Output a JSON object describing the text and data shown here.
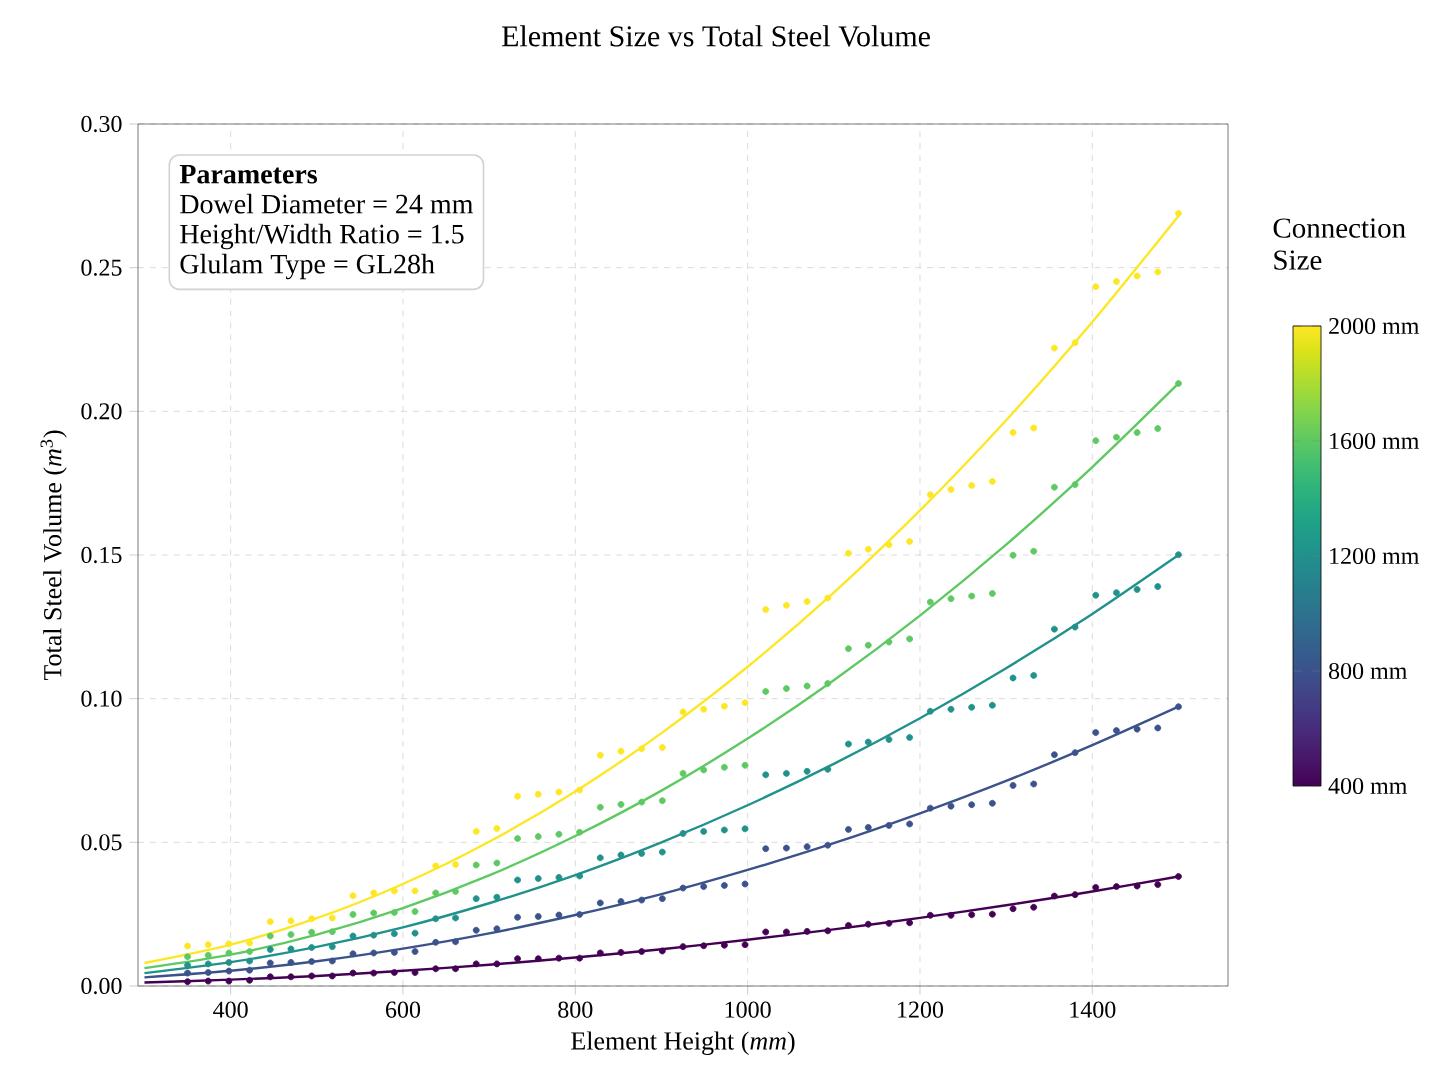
{
  "chart_data": {
    "type": "scatter",
    "title": "Element Size vs Total Steel Volume",
    "xlabel": "Element Height (*mm*)",
    "ylabel": "Total Steel Volume (*m*$^{3}$)",
    "clabel": "Connection Size",
    "clim": [
      400,
      2000
    ],
    "cticks": [
      {
        "value": 400,
        "label": "400 mm"
      },
      {
        "value": 800,
        "label": "800 mm"
      },
      {
        "value": 1200,
        "label": "1200 mm"
      },
      {
        "value": 1600,
        "label": "1600 mm"
      },
      {
        "value": 2000,
        "label": "2000 mm"
      }
    ],
    "xlim": [
      292.5,
      1557.5
    ],
    "ylim": [
      0,
      0.3
    ],
    "xticks": [
      400,
      600,
      800,
      1000,
      1200,
      1400
    ],
    "yticks": [
      {
        "value": 0,
        "label": "0.00"
      },
      {
        "value": 0.05,
        "label": "0.05"
      },
      {
        "value": 0.1,
        "label": "0.10"
      },
      {
        "value": 0.15,
        "label": "0.15"
      },
      {
        "value": 0.2,
        "label": "0.20"
      },
      {
        "value": 0.25,
        "label": "0.25"
      },
      {
        "value": 0.3,
        "label": "0.30"
      }
    ],
    "grid": true,
    "line_style": "solid",
    "annotations": [
      "Parameters",
      "Dowel Diameter = 24 mm",
      "Height/Width Ratio = 1.5",
      "Glulam Type = GL28h"
    ],
    "series": [
      {
        "type": "line",
        "color": "#440154",
        "x": [
          300,
          400,
          500,
          600,
          700,
          800,
          900,
          1000,
          1100,
          1200,
          1300,
          1400,
          1500
        ],
        "values": [
          0.0012,
          0.0022,
          0.0035,
          0.0053,
          0.0074,
          0.0099,
          0.0128,
          0.0161,
          0.0197,
          0.0237,
          0.0281,
          0.0329,
          0.0381
        ]
      },
      {
        "type": "line",
        "color": "#3b528b",
        "x": [
          300,
          400,
          500,
          600,
          700,
          800,
          900,
          1000,
          1100,
          1200,
          1300,
          1400,
          1500
        ],
        "values": [
          0.003,
          0.0053,
          0.0086,
          0.013,
          0.0183,
          0.0247,
          0.032,
          0.0404,
          0.0497,
          0.0601,
          0.0714,
          0.0838,
          0.0972
        ]
      },
      {
        "type": "line",
        "color": "#21918c",
        "x": [
          300,
          400,
          500,
          600,
          700,
          800,
          900,
          1000,
          1100,
          1200,
          1300,
          1400,
          1500
        ],
        "values": [
          0.0045,
          0.0083,
          0.0136,
          0.0204,
          0.0288,
          0.0386,
          0.05,
          0.0629,
          0.0773,
          0.0932,
          0.1106,
          0.1295,
          0.15
        ]
      },
      {
        "type": "line",
        "color": "#5ec962",
        "x": [
          300,
          400,
          500,
          600,
          700,
          800,
          900,
          1000,
          1100,
          1200,
          1300,
          1400,
          1500
        ],
        "values": [
          0.0062,
          0.0109,
          0.0179,
          0.0271,
          0.0385,
          0.0522,
          0.068,
          0.0861,
          0.1064,
          0.1289,
          0.1536,
          0.1806,
          0.2097
        ]
      },
      {
        "type": "line",
        "color": "#fde725",
        "x": [
          300,
          400,
          500,
          600,
          700,
          800,
          900,
          1000,
          1100,
          1200,
          1300,
          1400,
          1500
        ],
        "values": [
          0.008,
          0.0144,
          0.0236,
          0.0355,
          0.0502,
          0.0677,
          0.088,
          0.1111,
          0.1369,
          0.1655,
          0.1969,
          0.2311,
          0.268
        ]
      },
      {
        "marker": "circle",
        "color": "#440154",
        "x": [
          350,
          374,
          398,
          422,
          446,
          470,
          494,
          518,
          542,
          566,
          590,
          614,
          638,
          661,
          685,
          709,
          733,
          757,
          781,
          805,
          829,
          853,
          877,
          901,
          925,
          949,
          973,
          997,
          1021,
          1045,
          1069,
          1093,
          1117,
          1140,
          1164,
          1188,
          1212,
          1236,
          1260,
          1284,
          1308,
          1332,
          1356,
          1380,
          1404,
          1428,
          1452,
          1476,
          1500
        ],
        "values": [
          0.0015,
          0.0017,
          0.0017,
          0.002,
          0.0032,
          0.0032,
          0.0035,
          0.0035,
          0.0045,
          0.0045,
          0.0047,
          0.0047,
          0.006,
          0.006,
          0.0077,
          0.0077,
          0.0095,
          0.0095,
          0.0097,
          0.0097,
          0.0115,
          0.0117,
          0.012,
          0.0122,
          0.0137,
          0.014,
          0.0142,
          0.0144,
          0.0188,
          0.0188,
          0.019,
          0.0192,
          0.0211,
          0.0215,
          0.0218,
          0.022,
          0.0246,
          0.0246,
          0.0248,
          0.025,
          0.0269,
          0.0274,
          0.0313,
          0.0318,
          0.0343,
          0.0346,
          0.0348,
          0.0353,
          0.0381
        ]
      },
      {
        "marker": "circle",
        "color": "#3b528b",
        "x": [
          350,
          374,
          398,
          422,
          446,
          470,
          494,
          518,
          542,
          566,
          590,
          614,
          638,
          661,
          685,
          709,
          733,
          757,
          781,
          805,
          829,
          853,
          877,
          901,
          925,
          949,
          973,
          997,
          1021,
          1045,
          1069,
          1093,
          1117,
          1140,
          1164,
          1188,
          1212,
          1236,
          1260,
          1284,
          1308,
          1332,
          1356,
          1380,
          1404,
          1428,
          1452,
          1476,
          1500
        ],
        "values": [
          0.0045,
          0.0047,
          0.0052,
          0.0055,
          0.008,
          0.0082,
          0.0085,
          0.0087,
          0.0112,
          0.0115,
          0.0117,
          0.012,
          0.0152,
          0.0154,
          0.0194,
          0.0199,
          0.0239,
          0.0242,
          0.0247,
          0.0249,
          0.0289,
          0.0294,
          0.0299,
          0.0304,
          0.0341,
          0.0346,
          0.035,
          0.0355,
          0.0478,
          0.048,
          0.0485,
          0.049,
          0.0545,
          0.0552,
          0.0559,
          0.0564,
          0.0619,
          0.0626,
          0.0631,
          0.0636,
          0.0698,
          0.0703,
          0.0805,
          0.0812,
          0.0882,
          0.0889,
          0.0894,
          0.0898,
          0.0972
        ]
      },
      {
        "marker": "circle",
        "color": "#21918c",
        "x": [
          350,
          374,
          398,
          422,
          446,
          470,
          494,
          518,
          542,
          566,
          590,
          614,
          638,
          661,
          685,
          709,
          733,
          757,
          781,
          805,
          829,
          853,
          877,
          901,
          925,
          949,
          973,
          997,
          1021,
          1045,
          1069,
          1093,
          1117,
          1140,
          1164,
          1188,
          1212,
          1236,
          1260,
          1284,
          1308,
          1332,
          1356,
          1380,
          1404,
          1428,
          1452,
          1476,
          1500
        ],
        "values": [
          0.0072,
          0.0077,
          0.0082,
          0.0087,
          0.0127,
          0.0129,
          0.0134,
          0.0137,
          0.0174,
          0.0177,
          0.0182,
          0.0184,
          0.0234,
          0.0237,
          0.0304,
          0.0309,
          0.0369,
          0.0374,
          0.0378,
          0.0383,
          0.0446,
          0.0456,
          0.0461,
          0.0466,
          0.0531,
          0.0538,
          0.0543,
          0.0547,
          0.0735,
          0.074,
          0.0747,
          0.0754,
          0.0842,
          0.0849,
          0.0858,
          0.0865,
          0.0956,
          0.0963,
          0.097,
          0.0977,
          0.1072,
          0.1081,
          0.1242,
          0.1249,
          0.136,
          0.1369,
          0.138,
          0.139,
          0.1501
        ]
      },
      {
        "marker": "circle",
        "color": "#5ec962",
        "x": [
          350,
          374,
          398,
          422,
          446,
          470,
          494,
          518,
          542,
          566,
          590,
          614,
          638,
          661,
          685,
          709,
          733,
          757,
          781,
          805,
          829,
          853,
          877,
          901,
          925,
          949,
          973,
          997,
          1021,
          1045,
          1069,
          1093,
          1117,
          1140,
          1164,
          1188,
          1212,
          1236,
          1260,
          1284,
          1308,
          1332,
          1356,
          1380,
          1404,
          1428,
          1452,
          1476,
          1500
        ],
        "values": [
          0.0102,
          0.0107,
          0.0115,
          0.012,
          0.0174,
          0.0179,
          0.0187,
          0.0189,
          0.0249,
          0.0254,
          0.0256,
          0.0259,
          0.0324,
          0.0329,
          0.0421,
          0.0428,
          0.0513,
          0.052,
          0.0528,
          0.0535,
          0.0622,
          0.0632,
          0.064,
          0.0645,
          0.074,
          0.0752,
          0.0761,
          0.0768,
          0.1025,
          0.1035,
          0.1044,
          0.1053,
          0.1174,
          0.1186,
          0.1197,
          0.1208,
          0.1336,
          0.1348,
          0.1357,
          0.1366,
          0.1499,
          0.1513,
          0.1736,
          0.1745,
          0.1898,
          0.191,
          0.1926,
          0.194,
          0.2097
        ]
      },
      {
        "marker": "circle",
        "color": "#fde725",
        "x": [
          350,
          374,
          398,
          422,
          446,
          470,
          494,
          518,
          542,
          566,
          590,
          614,
          638,
          661,
          685,
          709,
          733,
          757,
          781,
          805,
          829,
          853,
          877,
          901,
          925,
          949,
          973,
          997,
          1021,
          1045,
          1069,
          1093,
          1117,
          1140,
          1164,
          1188,
          1212,
          1236,
          1260,
          1284,
          1308,
          1332,
          1356,
          1380,
          1404,
          1428,
          1452,
          1476,
          1500
        ],
        "values": [
          0.0139,
          0.0144,
          0.0147,
          0.015,
          0.0224,
          0.0227,
          0.0234,
          0.0237,
          0.0314,
          0.0324,
          0.0331,
          0.0331,
          0.0418,
          0.0423,
          0.0538,
          0.0548,
          0.066,
          0.0667,
          0.0675,
          0.0682,
          0.0803,
          0.0817,
          0.0826,
          0.083,
          0.0954,
          0.0963,
          0.0974,
          0.0986,
          0.131,
          0.1325,
          0.1338,
          0.135,
          0.1506,
          0.152,
          0.1536,
          0.1547,
          0.171,
          0.1728,
          0.1742,
          0.1756,
          0.1926,
          0.1942,
          0.222,
          0.2239,
          0.2434,
          0.2452,
          0.2471,
          0.2485,
          0.2689
        ]
      }
    ]
  }
}
